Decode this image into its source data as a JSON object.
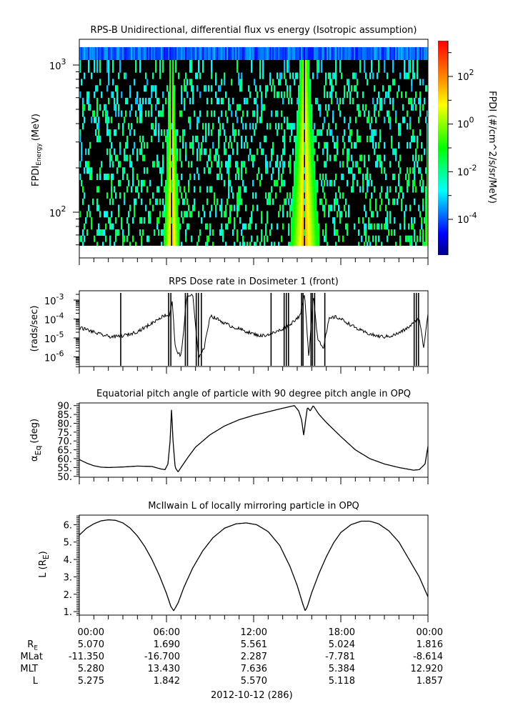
{
  "colors": {
    "frame": "#000000",
    "line": "#000000",
    "background": "#ffffff",
    "spectrogram_empty": "#000000"
  },
  "chart_data": [
    {
      "type": "heatmap",
      "title": "RPS-B  Unidirectional, differential flux vs energy (Isotropic assumption)",
      "ylabel_main": "FPDI",
      "ylabel_sub": "Energy",
      "ylabel_unit": "(MeV)",
      "yscale": "log",
      "ylim": [
        55,
        1400
      ],
      "yticks": [
        {
          "value": 100,
          "base": "10",
          "exp": "2"
        },
        {
          "value": 1000,
          "base": "10",
          "exp": "3"
        }
      ],
      "xlim_hours": [
        0,
        24
      ],
      "energy_bins_mev": [
        60,
        66,
        73,
        80,
        88,
        97,
        107,
        118,
        130,
        143,
        158,
        174,
        192,
        212,
        234,
        258,
        285,
        315,
        348,
        384,
        424,
        468,
        516,
        570,
        629,
        694,
        766,
        846,
        934
      ],
      "top_band_energy_mev": 1200,
      "belt_crossings": [
        {
          "center_hour": 6.35,
          "gap_hour": 0.05,
          "peak_log_flux": 1.8,
          "width_hours_low_energy": 0.55,
          "width_hours_high_energy": 0.15
        },
        {
          "center_hour": 15.5,
          "gap_hour": 0.05,
          "peak_log_flux": 1.8,
          "width_hours_low_energy": 1.0,
          "width_hours_high_energy": 0.35
        },
        {
          "center_hour": 24.1,
          "gap_hour": 0.0,
          "peak_log_flux": 1.5,
          "width_hours_low_energy": 0.35,
          "width_hours_high_energy": 0.05
        }
      ],
      "background_log_flux_range": [
        -3.5,
        -1.5
      ],
      "colorbar": {
        "label": "FPDI (#/cm^2/s/sr/MeV)",
        "scale": "log",
        "range_log10": [
          -5.5,
          3.5
        ],
        "ticks": [
          {
            "value": -4,
            "base": "10",
            "exp": "-4"
          },
          {
            "value": -2,
            "base": "10",
            "exp": "-2"
          },
          {
            "value": 0,
            "base": "10",
            "exp": "0"
          },
          {
            "value": 2,
            "base": "10",
            "exp": "2"
          }
        ],
        "minor_ticks": [
          -3,
          -1,
          1,
          3
        ],
        "colormap": [
          "#00007f",
          "#0000ff",
          "#0080ff",
          "#00ffff",
          "#00ff80",
          "#00ff00",
          "#80ff00",
          "#ffff00",
          "#ffa000",
          "#ff5000",
          "#ff0000"
        ]
      }
    },
    {
      "type": "line",
      "title": "RPS  Dose rate in Dosimeter 1 (front)",
      "ylabel": "(rads/sec)",
      "yscale": "log",
      "ylim": [
        3e-07,
        0.002
      ],
      "yticks": [
        {
          "value": 1e-06,
          "base": "10",
          "exp": "-6"
        },
        {
          "value": 1e-05,
          "base": "10",
          "exp": "-5"
        },
        {
          "value": 0.0001,
          "base": "10",
          "exp": "-4"
        },
        {
          "value": 0.001,
          "base": "10",
          "exp": "-3"
        }
      ],
      "x_hours": [
        0,
        0.5,
        1,
        1.5,
        2,
        2.5,
        3,
        3.5,
        4,
        4.5,
        5,
        5.5,
        5.9,
        6.2,
        6.4,
        6.6,
        7.0,
        7.4,
        7.8,
        8.2,
        8.6,
        9.0,
        9.5,
        10,
        10.5,
        11,
        11.5,
        12,
        12.5,
        13,
        13.5,
        14,
        14.5,
        14.9,
        15.2,
        15.5,
        15.8,
        16.1,
        16.4,
        16.8,
        17.2,
        17.6,
        18,
        18.5,
        19,
        19.5,
        20,
        20.5,
        21,
        21.5,
        22,
        22.5,
        23,
        23.4,
        23.7,
        24
      ],
      "values": [
        3.5e-05,
        2.8e-05,
        2e-05,
        1.5e-05,
        1.2e-05,
        1.15e-05,
        1.3e-05,
        1.6e-05,
        2.2e-05,
        3.5e-05,
        6e-05,
        0.00011,
        0.00016,
        0.00015,
        0.0009,
        3e-06,
        1e-06,
        0.0015,
        0.002,
        1e-06,
        3e-06,
        0.00015,
        0.0001,
        6e-05,
        4e-05,
        3e-05,
        2.2e-05,
        1.6e-05,
        1.3e-05,
        1.5e-05,
        2e-05,
        3e-05,
        5e-05,
        0.0001,
        0.00015,
        0.002,
        1e-06,
        0.002,
        1e-05,
        3e-06,
        0.0001,
        0.00013,
        0.0001,
        6e-05,
        3.5e-05,
        2.2e-05,
        1.6e-05,
        1.25e-05,
        1.15e-05,
        1.3e-05,
        1.8e-05,
        3e-05,
        6e-05,
        0.00011,
        3e-06,
        0.0002
      ],
      "dropouts_hours": [
        2.85,
        6.15,
        6.3,
        7.3,
        7.45,
        8.05,
        8.2,
        8.4,
        13.2,
        14.1,
        14.25,
        14.4,
        15.3,
        15.4,
        15.95,
        16.05,
        16.2,
        16.9,
        23.05,
        23.2,
        23.35
      ]
    },
    {
      "type": "line",
      "title": "Equatorial pitch angle of particle with 90 degree pitch angle in OPQ",
      "ylabel_main": "α",
      "ylabel_sub": "Eq",
      "ylabel_unit": "(deg)",
      "ylim": [
        49.5,
        91.5
      ],
      "yticks": [
        "50.",
        "55.",
        "60.",
        "65.",
        "70.",
        "75.",
        "80.",
        "85.",
        "90."
      ],
      "x_hours": [
        0,
        0.5,
        1,
        1.5,
        2,
        3,
        4,
        5,
        5.6,
        5.9,
        6.1,
        6.25,
        6.35,
        6.45,
        6.6,
        6.8,
        7.0,
        7.5,
        8,
        9,
        10,
        11,
        12,
        13,
        14,
        14.8,
        15.1,
        15.3,
        15.45,
        15.55,
        15.7,
        15.9,
        16.1,
        16.5,
        17,
        18,
        19,
        20,
        21,
        22,
        23,
        23.4,
        23.8,
        24
      ],
      "values": [
        59.5,
        57.5,
        56,
        55.2,
        55,
        55.3,
        55.8,
        55.6,
        54.2,
        53.8,
        57,
        70,
        88.5,
        70,
        55,
        52.5,
        55,
        61,
        66.5,
        73.5,
        78.5,
        82,
        84.5,
        86.5,
        88.5,
        90,
        87,
        82,
        73,
        80,
        89,
        87,
        90,
        85,
        80.5,
        72.5,
        65,
        60,
        57,
        55,
        53.5,
        53.8,
        57,
        67
      ]
    },
    {
      "type": "line",
      "title": "McIlwain L of locally mirroring particle in OPQ",
      "ylabel_main": "L (R",
      "ylabel_sub": "E",
      "ylabel_unit": ")",
      "ylim": [
        0.8,
        6.55
      ],
      "yticks": [
        "1.",
        "2.",
        "3.",
        "4.",
        "5.",
        "6."
      ],
      "x_hours": [
        0,
        0.5,
        1,
        1.5,
        2,
        2.5,
        3,
        3.5,
        4,
        4.5,
        5,
        5.5,
        6,
        6.3,
        6.5,
        6.8,
        7.2,
        7.8,
        8.5,
        9.2,
        10,
        10.8,
        11.5,
        12.2,
        13,
        13.8,
        14.5,
        15,
        15.4,
        15.55,
        15.7,
        16,
        16.5,
        17,
        17.5,
        18,
        18.7,
        19.4,
        20,
        20.6,
        21.3,
        22,
        22.7,
        23.4,
        24
      ],
      "values": [
        5.4,
        5.8,
        6.05,
        6.22,
        6.28,
        6.25,
        6.1,
        5.8,
        5.35,
        4.75,
        4.0,
        3.1,
        2.05,
        1.3,
        1.05,
        1.5,
        2.4,
        3.5,
        4.5,
        5.25,
        5.8,
        6.05,
        6.1,
        6.0,
        5.6,
        4.8,
        3.6,
        2.5,
        1.4,
        1.05,
        1.3,
        2.1,
        3.2,
        4.15,
        4.95,
        5.55,
        6.0,
        6.2,
        6.2,
        6.05,
        5.65,
        5.0,
        4.0,
        3.0,
        1.85
      ]
    }
  ],
  "x_axis": {
    "tick_labels": [
      "00:00",
      "06:00",
      "12:00",
      "18:00",
      "00:00"
    ],
    "major_hours": [
      0,
      6,
      12,
      18,
      24
    ],
    "minor_step_hours": 1,
    "date_label": "2012-10-12 (286)"
  },
  "ephemeris": {
    "rows": [
      {
        "label": "R",
        "label_sub": "E",
        "values": [
          "5.070",
          "1.690",
          "5.561",
          "5.024",
          "1.816"
        ]
      },
      {
        "label": "MLat",
        "label_sub": "",
        "values": [
          "-11.350",
          "-16.700",
          "2.287",
          "-7.781",
          "-8.614"
        ]
      },
      {
        "label": "MLT",
        "label_sub": "",
        "values": [
          "5.280",
          "13.430",
          "7.636",
          "5.384",
          "12.920"
        ]
      },
      {
        "label": "L",
        "label_sub": "",
        "values": [
          "5.275",
          "1.842",
          "5.570",
          "5.118",
          "1.857"
        ]
      }
    ]
  }
}
